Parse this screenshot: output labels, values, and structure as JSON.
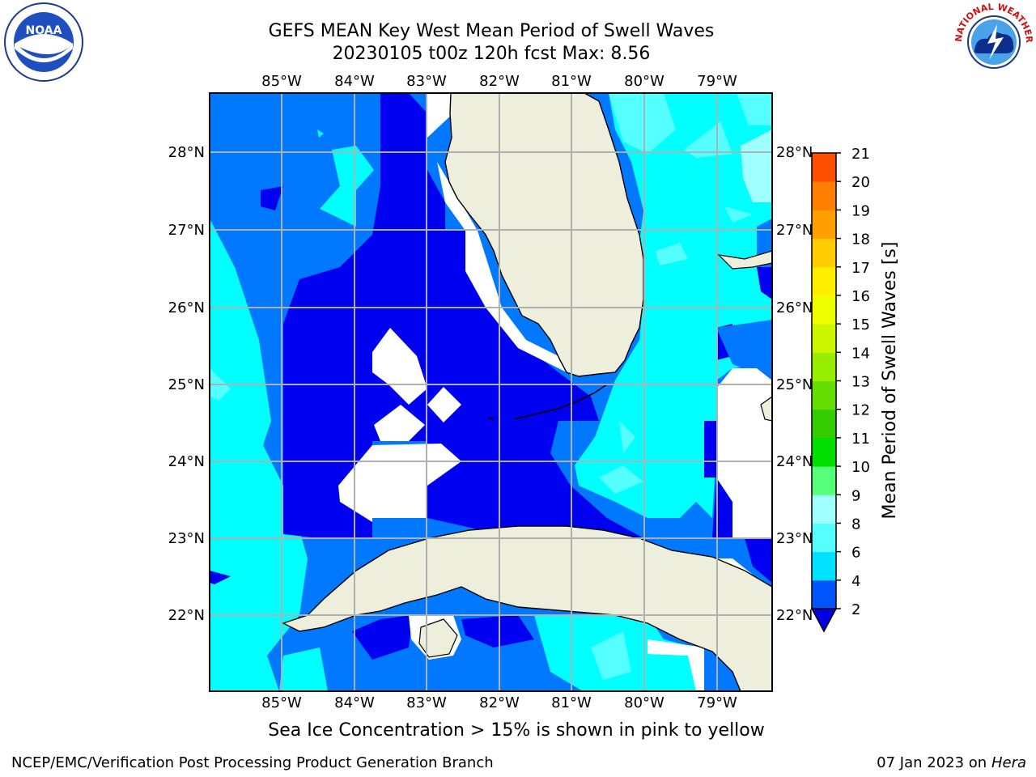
{
  "title": {
    "line1": "GEFS MEAN Key West Mean Period of Swell Waves",
    "line2": "20230105 t00z 120h fcst   Max: 8.56"
  },
  "subtitle": "Sea Ice Concentration > 15% is shown in pink to yellow",
  "footer": {
    "left": "NCEP/EMC/Verification Post Processing Product Generation Branch",
    "right_date": "07 Jan 2023 on ",
    "right_host": "Hera"
  },
  "logos": {
    "left": {
      "icon": "noaa-logo-icon",
      "text": "NOAA"
    },
    "right": {
      "icon": "nws-logo-icon",
      "text": "NATIONAL WEATHER SERVICE"
    }
  },
  "map": {
    "lon_labels_top": [
      "85°W",
      "84°W",
      "83°W",
      "82°W",
      "81°W",
      "80°W",
      "79°W"
    ],
    "lon_labels_bottom": [
      "85°W",
      "84°W",
      "83°W",
      "82°W",
      "81°W",
      "80°W",
      "79°W"
    ],
    "lat_labels_left": [
      "28°N",
      "27°N",
      "26°N",
      "25°N",
      "24°N",
      "23°N",
      "22°N"
    ],
    "lat_labels_right": [
      "28°N",
      "27°N",
      "26°N",
      "25°N",
      "24°N",
      "23°N",
      "22°N"
    ],
    "colors": {
      "ocean_2_4": "#0078ff",
      "ocean_below_2": "#0000f0",
      "ocean_4_6": "#00ffff",
      "ocean_6_8": "#55ffff",
      "ocean_8_9": "#a0ffff",
      "land": "#eeeedd",
      "grid": "#b0b0b0"
    }
  },
  "colorbar": {
    "label": "Mean Period of Swell Waves [s]",
    "ticks": [
      "2",
      "4",
      "6",
      "8",
      "9",
      "10",
      "11",
      "12",
      "13",
      "14",
      "15",
      "16",
      "17",
      "18",
      "19",
      "20",
      "21"
    ],
    "colors": [
      "#0055ff",
      "#00e0ff",
      "#55ffff",
      "#a0ffff",
      "#55ff77",
      "#00dd00",
      "#33cc00",
      "#66dd00",
      "#99ee00",
      "#ccf500",
      "#eeff00",
      "#ffee00",
      "#ffcc00",
      "#ffa000",
      "#ff8000",
      "#ff5000",
      "#ff2000",
      "#ff0000"
    ],
    "under_color": "#0000e0"
  }
}
